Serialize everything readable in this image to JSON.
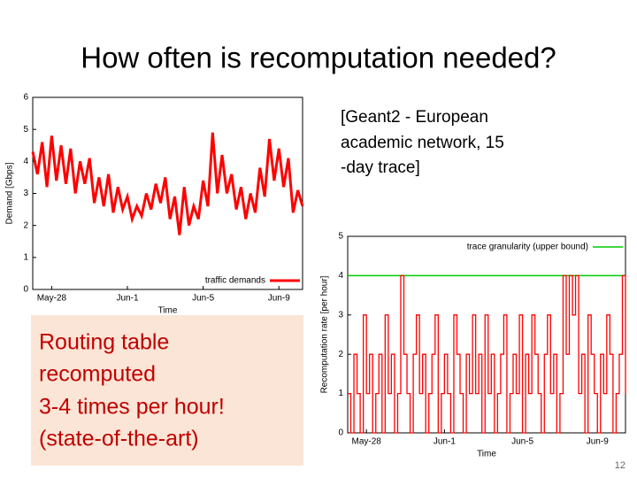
{
  "title": "How often is recomputation needed?",
  "note_lines": [
    "[Geant2 - European",
    "academic network, 15",
    "-day trace]"
  ],
  "callout_lines": [
    "Routing table",
    "recomputed",
    "3-4 times per hour!",
    "(state-of-the-art)"
  ],
  "page_number": "12",
  "chart_data": [
    {
      "type": "line",
      "ylabel": "Demand [Gbps]",
      "xlabel": "Time",
      "xlim": [
        0,
        57
      ],
      "ylim": [
        0,
        6
      ],
      "yticks": [
        0,
        1,
        2,
        3,
        4,
        5,
        6
      ],
      "xticks": [
        {
          "value": 4,
          "label": "May-28"
        },
        {
          "value": 20,
          "label": "Jun-1"
        },
        {
          "value": 36,
          "label": "Jun-5"
        },
        {
          "value": 52,
          "label": "Jun-9"
        }
      ],
      "legend": "bottom-right",
      "step": false,
      "series": [
        {
          "name": "traffic demands",
          "color": "#ff0000",
          "values": [
            4.3,
            3.6,
            4.6,
            3.2,
            4.8,
            3.4,
            4.5,
            3.3,
            4.4,
            3.0,
            4.0,
            3.3,
            4.1,
            2.7,
            3.5,
            2.6,
            3.6,
            2.4,
            3.2,
            2.5,
            2.9,
            2.2,
            2.6,
            2.3,
            3.0,
            2.5,
            3.3,
            2.7,
            3.5,
            2.2,
            2.9,
            1.7,
            3.2,
            2.0,
            2.6,
            2.2,
            3.4,
            2.6,
            4.9,
            3.0,
            4.2,
            3.0,
            3.6,
            2.5,
            3.2,
            2.2,
            3.0,
            2.4,
            3.8,
            2.9,
            4.7,
            3.4,
            4.4,
            3.2,
            4.1,
            2.4,
            3.1,
            2.6
          ]
        }
      ]
    },
    {
      "type": "line",
      "ylabel": "Recomputation rate [per hour]",
      "xlabel": "Time",
      "xlim": [
        0,
        89
      ],
      "ylim": [
        0,
        5
      ],
      "yticks": [
        0,
        1,
        2,
        3,
        4,
        5
      ],
      "xticks": [
        {
          "value": 6,
          "label": "May-28"
        },
        {
          "value": 31,
          "label": "Jun-1"
        },
        {
          "value": 56,
          "label": "Jun-5"
        },
        {
          "value": 80,
          "label": "Jun-9"
        }
      ],
      "legend": "top-right",
      "step": true,
      "hlines": [
        {
          "name": "trace granularity (upper bound)",
          "value": 4,
          "color": "#00cc00"
        }
      ],
      "series": [
        {
          "color": "#ff0000",
          "values": [
            1,
            0,
            2,
            1,
            0,
            3,
            1,
            2,
            0,
            1,
            2,
            0,
            3,
            1,
            2,
            0,
            1,
            4,
            2,
            1,
            0,
            2,
            3,
            1,
            2,
            0,
            1,
            2,
            3,
            0,
            1,
            2,
            1,
            0,
            3,
            2,
            1,
            0,
            2,
            1,
            3,
            1,
            2,
            0,
            3,
            1,
            2,
            0,
            1,
            2,
            3,
            0,
            1,
            2,
            1,
            3,
            0,
            2,
            1,
            3,
            2,
            1,
            0,
            2,
            3,
            1,
            2,
            0,
            1,
            4,
            2,
            4,
            3,
            4,
            1,
            2,
            0,
            3,
            2,
            1,
            0,
            2,
            1,
            3,
            2,
            0,
            1,
            2,
            4,
            1
          ]
        }
      ]
    }
  ]
}
